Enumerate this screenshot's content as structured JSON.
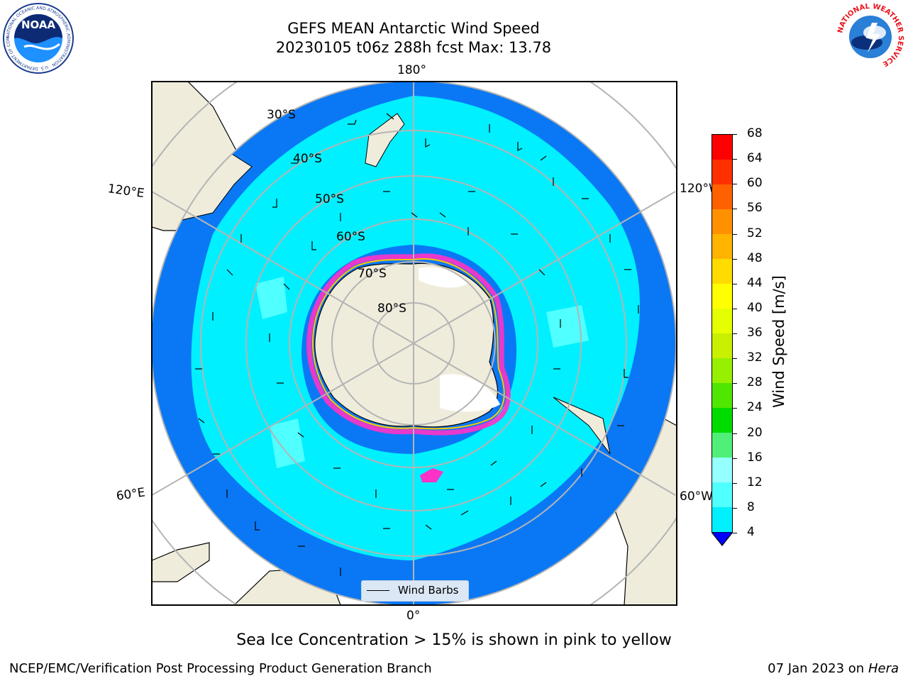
{
  "header": {
    "title_line1": "GEFS MEAN Antarctic Wind Speed",
    "title_line2": "20230105 t06z 288h fcst   Max: 13.78"
  },
  "logos": {
    "left": "NOAA",
    "left_ring_text": "NATIONAL OCEANIC AND ATMOSPHERIC ADMINISTRATION · U.S. DEPARTMENT OF COMMERCE",
    "right_ring_text": "NATIONAL WEATHER SERVICE"
  },
  "map": {
    "longitude_labels": {
      "top": "180°",
      "bottom": "0°",
      "upper_left": "120°E",
      "upper_right": "120°W",
      "lower_left": "60°E",
      "lower_right": "60°W"
    },
    "latitude_labels": [
      "30°S",
      "40°S",
      "50°S",
      "60°S",
      "70°S",
      "80°S"
    ],
    "legend_label": "Wind Barbs",
    "colors": {
      "land": "#efecdc",
      "ocean_4_8": "#0a78f5",
      "ocean_8_12": "#00f0ff",
      "ocean_12_16": "#50ffff",
      "ice_edge": "#ff32c8",
      "grid": "#b4b4b4"
    }
  },
  "colorbar": {
    "label": "Wind Speed [m/s]",
    "ticks": [
      "68",
      "64",
      "60",
      "56",
      "52",
      "48",
      "44",
      "40",
      "36",
      "32",
      "28",
      "24",
      "20",
      "16",
      "12",
      "8",
      "4"
    ],
    "colors": [
      "#ff0000",
      "#ff3000",
      "#ff6000",
      "#ff9000",
      "#ffb400",
      "#ffdc00",
      "#ffff00",
      "#e6ff00",
      "#c8f000",
      "#96f000",
      "#50e600",
      "#00dc00",
      "#50f078",
      "#96ffff",
      "#50ffff",
      "#00f0ff",
      "#0a78f5"
    ],
    "under_color": "#0000ff"
  },
  "footer": {
    "note": "Sea Ice Concentration > 15% is shown in pink to yellow",
    "left": "NCEP/EMC/Verification Post Processing Product Generation Branch",
    "right_prefix": "07 Jan 2023 on ",
    "right_host": "Hera"
  }
}
